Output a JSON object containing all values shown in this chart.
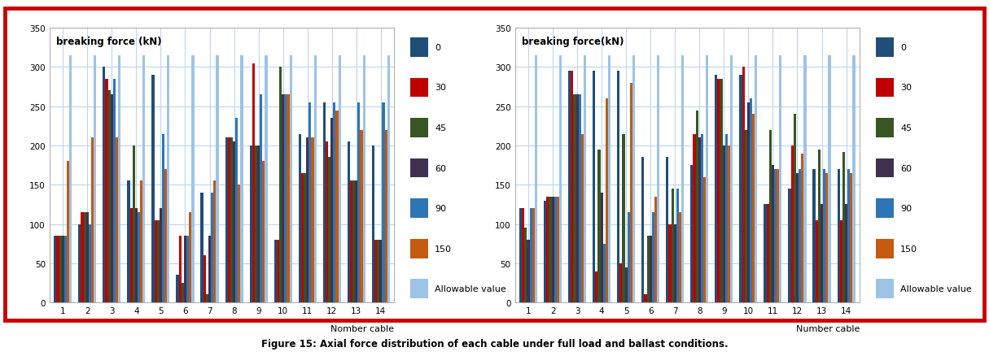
{
  "left_chart": {
    "title": "breaking force (kN)",
    "xlabel": "Nomber cable",
    "ylim": [
      0,
      350
    ],
    "yticks": [
      0,
      50,
      100,
      150,
      200,
      250,
      300,
      350
    ],
    "categories": [
      1,
      2,
      3,
      4,
      5,
      6,
      7,
      8,
      9,
      10,
      11,
      12,
      13,
      14
    ],
    "series": {
      "0": [
        85,
        100,
        300,
        155,
        290,
        35,
        140,
        210,
        200,
        80,
        215,
        255,
        205,
        200
      ],
      "30": [
        85,
        115,
        285,
        120,
        105,
        85,
        60,
        210,
        305,
        80,
        165,
        205,
        155,
        80
      ],
      "45": [
        85,
        115,
        270,
        200,
        105,
        25,
        10,
        210,
        200,
        300,
        165,
        185,
        155,
        80
      ],
      "60": [
        85,
        115,
        265,
        120,
        120,
        85,
        85,
        205,
        200,
        265,
        210,
        235,
        155,
        80
      ],
      "90": [
        85,
        100,
        285,
        115,
        215,
        85,
        140,
        235,
        265,
        265,
        255,
        255,
        255,
        255
      ],
      "150": [
        180,
        210,
        210,
        155,
        170,
        115,
        155,
        150,
        180,
        265,
        210,
        245,
        220,
        220
      ],
      "Allowable value": [
        315,
        315,
        315,
        315,
        315,
        315,
        315,
        315,
        315,
        315,
        315,
        315,
        315,
        315
      ]
    },
    "colors": {
      "0": "#1F4E79",
      "30": "#C00000",
      "45": "#375623",
      "60": "#403151",
      "90": "#2E75B6",
      "150": "#C55A11",
      "Allowable value": "#9DC3E6"
    }
  },
  "right_chart": {
    "title": "breaking force(kN)",
    "xlabel": "Number cable",
    "ylim": [
      0,
      350
    ],
    "yticks": [
      0,
      50,
      100,
      150,
      200,
      250,
      300,
      350
    ],
    "categories": [
      1,
      2,
      3,
      4,
      5,
      6,
      7,
      8,
      9,
      10,
      11,
      12,
      13,
      14
    ],
    "series": {
      "0": [
        120,
        130,
        295,
        295,
        295,
        185,
        185,
        175,
        290,
        290,
        125,
        145,
        170,
        170
      ],
      "30": [
        120,
        135,
        295,
        40,
        50,
        10,
        100,
        215,
        285,
        300,
        125,
        200,
        105,
        105
      ],
      "45": [
        95,
        135,
        265,
        195,
        215,
        85,
        145,
        245,
        285,
        220,
        220,
        240,
        195,
        192
      ],
      "60": [
        80,
        135,
        265,
        140,
        45,
        85,
        100,
        210,
        200,
        255,
        175,
        165,
        125,
        125
      ],
      "90": [
        120,
        135,
        265,
        75,
        115,
        115,
        145,
        215,
        215,
        260,
        170,
        170,
        170,
        170
      ],
      "150": [
        120,
        135,
        215,
        260,
        280,
        135,
        115,
        160,
        200,
        240,
        170,
        190,
        165,
        165
      ],
      "Allowable value": [
        315,
        315,
        315,
        315,
        315,
        315,
        315,
        315,
        315,
        315,
        315,
        315,
        315,
        315
      ]
    },
    "colors": {
      "0": "#1F4E79",
      "30": "#C00000",
      "45": "#375623",
      "60": "#403151",
      "90": "#2E75B6",
      "150": "#C55A11",
      "Allowable value": "#9DC3E6"
    }
  },
  "fig_caption": "Figure 15: Axial force distribution of each cable under full load and ballast conditions.",
  "border_color": "#CC0000",
  "background_color": "#FFFFFF",
  "bar_series_order": [
    "0",
    "30",
    "45",
    "60",
    "90",
    "150",
    "Allowable value"
  ],
  "legend_labels": [
    "0",
    "30",
    "45",
    "60",
    "90",
    "150",
    "Allowable value"
  ]
}
